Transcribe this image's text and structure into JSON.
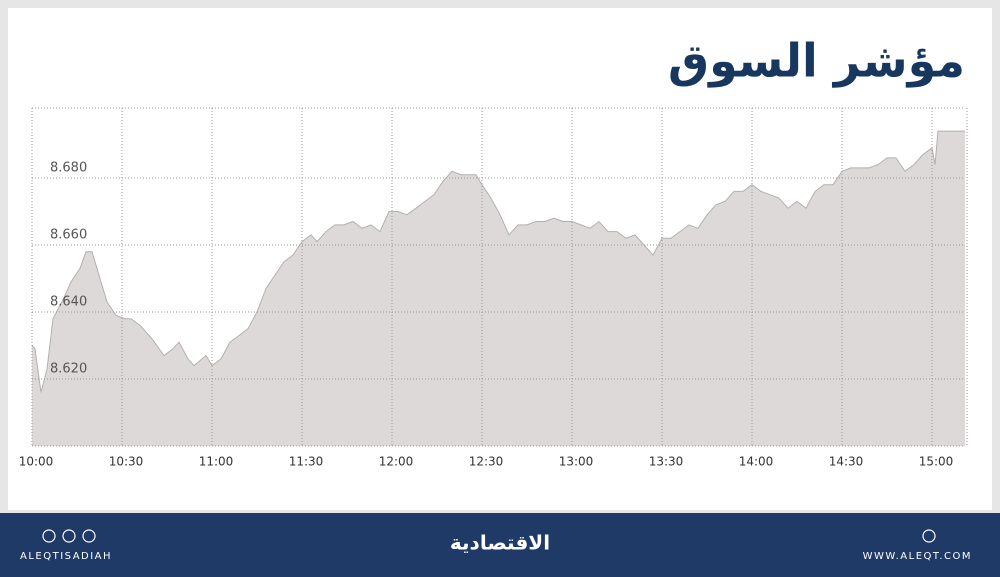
{
  "chart_data": {
    "type": "area",
    "title": "مؤشر السوق",
    "x": [
      "10:00",
      "10:01",
      "10:03",
      "10:05",
      "10:07",
      "10:10",
      "10:13",
      "10:16",
      "10:18",
      "10:20",
      "10:23",
      "10:25",
      "10:28",
      "10:31",
      "10:33",
      "10:36",
      "10:40",
      "10:44",
      "10:47",
      "10:49",
      "10:52",
      "10:54",
      "10:58",
      "11:00",
      "11:03",
      "11:06",
      "11:09",
      "11:12",
      "11:15",
      "11:18",
      "11:21",
      "11:24",
      "11:27",
      "11:30",
      "11:33",
      "11:35",
      "11:38",
      "11:41",
      "11:44",
      "11:47",
      "11:50",
      "11:53",
      "11:56",
      "11:59",
      "12:02",
      "12:05",
      "12:08",
      "12:11",
      "12:14",
      "12:17",
      "12:20",
      "12:23",
      "12:26",
      "12:28",
      "12:30",
      "12:33",
      "12:36",
      "12:39",
      "12:42",
      "12:45",
      "12:48",
      "12:51",
      "12:54",
      "12:57",
      "13:00",
      "13:03",
      "13:06",
      "13:09",
      "13:12",
      "13:15",
      "13:18",
      "13:21",
      "13:24",
      "13:27",
      "13:30",
      "13:33",
      "13:36",
      "13:39",
      "13:42",
      "13:45",
      "13:48",
      "13:51",
      "13:54",
      "13:57",
      "14:00",
      "14:03",
      "14:06",
      "14:09",
      "14:12",
      "14:15",
      "14:18",
      "14:21",
      "14:24",
      "14:27",
      "14:30",
      "14:33",
      "14:36",
      "14:39",
      "14:42",
      "14:45",
      "14:48",
      "14:51",
      "14:54",
      "14:57",
      "15:00",
      "15:01",
      "15:02",
      "15:11"
    ],
    "values": [
      8.63,
      8.629,
      8.616,
      8.623,
      8.638,
      8.643,
      8.649,
      8.653,
      8.658,
      8.658,
      8.649,
      8.643,
      8.639,
      8.638,
      8.638,
      8.636,
      8.632,
      8.627,
      8.629,
      8.631,
      8.626,
      8.624,
      8.627,
      8.624,
      8.626,
      8.631,
      8.633,
      8.635,
      8.64,
      8.647,
      8.651,
      8.655,
      8.657,
      8.661,
      8.663,
      8.661,
      8.664,
      8.666,
      8.666,
      8.667,
      8.665,
      8.666,
      8.664,
      8.67,
      8.67,
      8.669,
      8.671,
      8.673,
      8.675,
      8.679,
      8.682,
      8.681,
      8.681,
      8.681,
      8.678,
      8.674,
      8.669,
      8.663,
      8.666,
      8.666,
      8.667,
      8.667,
      8.668,
      8.667,
      8.667,
      8.666,
      8.665,
      8.667,
      8.664,
      8.664,
      8.662,
      8.663,
      8.66,
      8.657,
      8.662,
      8.662,
      8.664,
      8.666,
      8.665,
      8.669,
      8.672,
      8.673,
      8.676,
      8.676,
      8.678,
      8.676,
      8.675,
      8.674,
      8.671,
      8.673,
      8.671,
      8.676,
      8.678,
      8.678,
      8.682,
      8.683,
      8.683,
      8.683,
      8.684,
      8.686,
      8.686,
      8.682,
      8.684,
      8.687,
      8.689,
      8.684,
      8.694,
      8.694
    ],
    "color": "#dcd9d8",
    "line_color": "#b3b0af",
    "xlim": [
      "10:00",
      "15:11"
    ],
    "xticks": [
      "10:00",
      "10:30",
      "11:00",
      "11:30",
      "12:00",
      "12:30",
      "13:00",
      "13:30",
      "14:00",
      "14:30",
      "15:00"
    ],
    "ylim": [
      8.6,
      8.7
    ],
    "yticks": [
      {
        "value": 8.62,
        "label": "8.620"
      },
      {
        "value": 8.64,
        "label": "8.640"
      },
      {
        "value": 8.66,
        "label": "8.660"
      },
      {
        "value": 8.68,
        "label": "8.680"
      }
    ],
    "grid": true
  },
  "footer": {
    "left": "ALEQTISADIAH",
    "center": "الاقتصادية",
    "right": "WWW.ALEQT.COM"
  }
}
